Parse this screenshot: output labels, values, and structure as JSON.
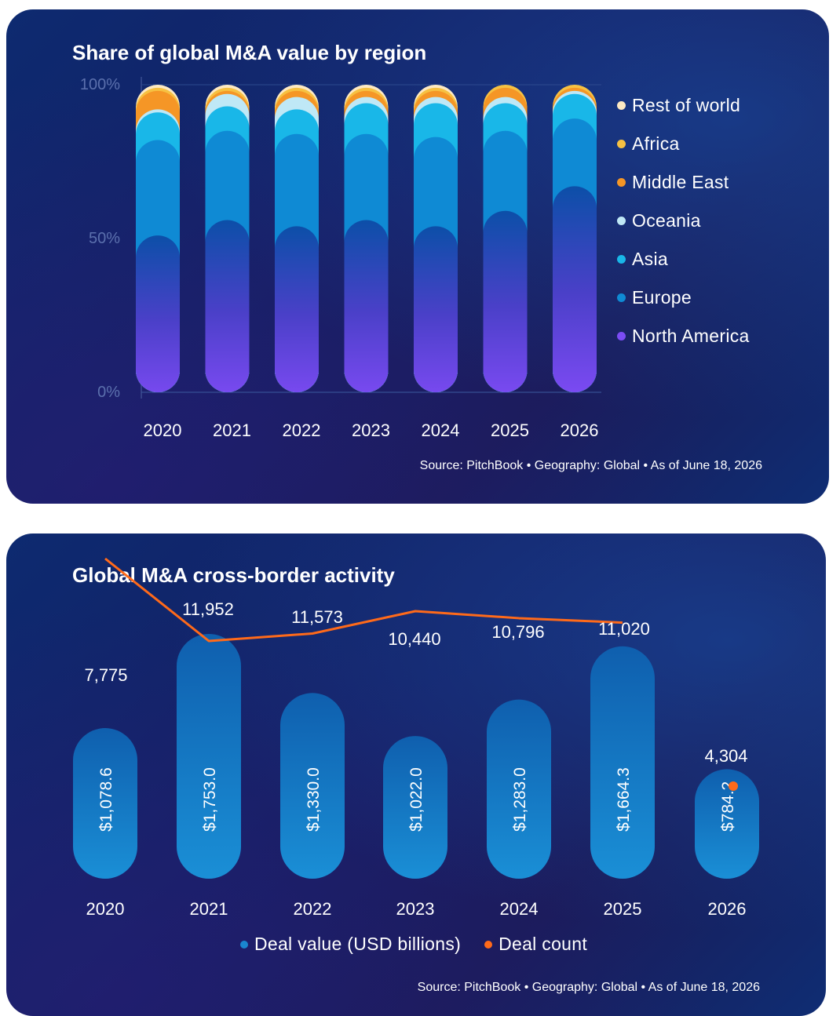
{
  "chart_data": [
    {
      "type": "bar",
      "stacked": true,
      "percent": true,
      "title": "Share of global M&A value by region",
      "categories": [
        "2020",
        "2021",
        "2022",
        "2023",
        "2024",
        "2025",
        "2026"
      ],
      "yticks": [
        "0%",
        "50%",
        "100%"
      ],
      "ylim": [
        0,
        100
      ],
      "legend_position": "right",
      "series": [
        {
          "name": "North America",
          "color": "#7b4cf4",
          "values": [
            51,
            56,
            54,
            56,
            54,
            59,
            67
          ]
        },
        {
          "name": "Europe",
          "color": "#0f8ad4",
          "values": [
            31,
            29,
            30,
            28,
            29,
            26,
            22
          ]
        },
        {
          "name": "Asia",
          "color": "#19b7e8",
          "values": [
            9,
            8,
            8,
            10,
            11,
            9,
            8
          ]
        },
        {
          "name": "Oceania",
          "color": "#bfe8f6",
          "values": [
            1,
            4,
            4,
            2,
            2,
            2,
            1
          ]
        },
        {
          "name": "Middle East",
          "color": "#f59626",
          "values": [
            6,
            1,
            2,
            2,
            2,
            3,
            1
          ]
        },
        {
          "name": "Africa",
          "color": "#f6c142",
          "values": [
            1,
            1,
            1,
            1,
            1,
            1,
            1
          ]
        },
        {
          "name": "Rest of world",
          "color": "#fde9c3",
          "values": [
            1,
            1,
            1,
            1,
            1,
            0,
            0
          ]
        }
      ],
      "legend": [
        "Rest of world",
        "Africa",
        "Middle East",
        "Oceania",
        "Asia",
        "Europe",
        "North America"
      ],
      "source": "Source: PitchBook • Geography: Global • As of June 18, 2026"
    },
    {
      "type": "bar",
      "title": "Global M&A cross-border activity",
      "categories": [
        "2020",
        "2021",
        "2022",
        "2023",
        "2024",
        "2025",
        "2026"
      ],
      "series": [
        {
          "name": "Deal value (USD billions)",
          "color": "#1a86cf",
          "values": [
            1078.6,
            1753.0,
            1330.0,
            1022.0,
            1283.0,
            1664.3,
            784.2
          ],
          "labels": [
            "$1,078.6",
            "$1,753.0",
            "$1,330.0",
            "$1,022.0",
            "$1,283.0",
            "$1,664.3",
            "$784.2"
          ]
        },
        {
          "name": "Deal count",
          "type": "line",
          "color": "#ff6a1a",
          "values": [
            7775,
            11952,
            11573,
            10440,
            10796,
            11020,
            4304
          ],
          "labels": [
            "7,775",
            "11,952",
            "11,573",
            "10,440",
            "10,796",
            "11,020",
            "4,304"
          ]
        }
      ],
      "legend": [
        "Deal value (USD billions)",
        "Deal count"
      ],
      "legend_position": "bottom",
      "source": "Source: PitchBook • Geography: Global • As of June 18, 2026"
    }
  ]
}
